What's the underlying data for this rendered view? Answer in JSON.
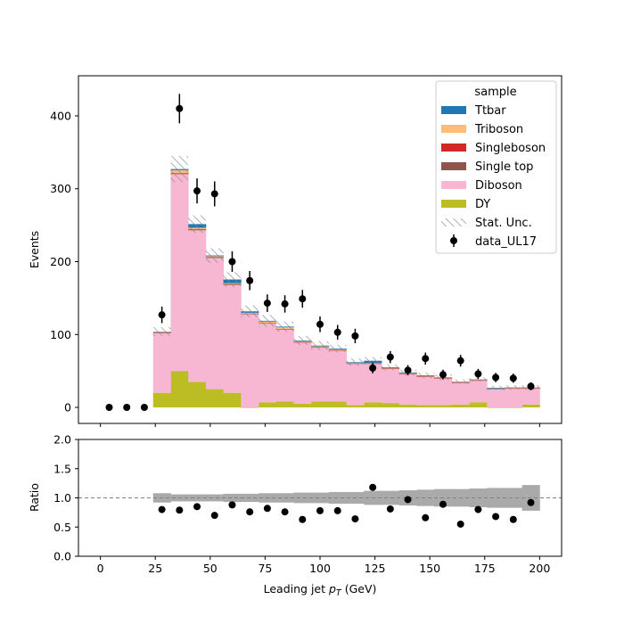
{
  "chart_data": [
    {
      "type": "bar",
      "stacked": true,
      "xlim": [
        -10,
        210
      ],
      "ylim": [
        -22,
        455
      ],
      "xticks": [
        0,
        25,
        50,
        75,
        100,
        125,
        150,
        175,
        200
      ],
      "yticks": [
        0,
        100,
        200,
        300,
        400
      ],
      "ylabel": "Events",
      "legend_title": "sample",
      "legend_position": "top-right",
      "bin_edges": [
        24,
        32,
        40,
        48,
        56,
        64,
        72,
        80,
        88,
        96,
        104,
        112,
        120,
        128,
        136,
        144,
        152,
        160,
        168,
        176,
        184,
        192,
        200
      ],
      "series": [
        {
          "name": "DY",
          "color": "#bcbd22",
          "values": [
            20,
            50,
            35,
            25,
            20,
            0,
            7,
            8,
            5,
            8,
            8,
            3,
            7,
            6,
            4,
            3,
            3,
            4,
            7,
            0,
            0,
            4
          ]
        },
        {
          "name": "Diboson",
          "color": "#f7b6d2",
          "values": [
            82,
            270,
            208,
            180,
            148,
            128,
            108,
            99,
            84,
            74,
            70,
            57,
            53,
            47,
            42,
            39,
            37,
            30,
            30,
            25,
            26,
            22
          ]
        },
        {
          "name": "Single top",
          "color": "#8c564b",
          "values": [
            0.3,
            1,
            1,
            1,
            1,
            0.5,
            0.5,
            0.5,
            0.5,
            0.5,
            0.5,
            0.3,
            0.3,
            0.3,
            0.3,
            0.2,
            0.2,
            0.2,
            0.2,
            0.2,
            0.2,
            0.2
          ]
        },
        {
          "name": "Singleboson",
          "color": "#d62728",
          "values": [
            0.2,
            0.5,
            0.5,
            0.5,
            0.5,
            0.3,
            0.3,
            0.3,
            0.3,
            0.3,
            0.3,
            0.2,
            0.2,
            0.2,
            0.2,
            0.1,
            0.1,
            0.1,
            0.1,
            0.1,
            0.1,
            0.1
          ]
        },
        {
          "name": "Triboson",
          "color": "#ffbb78",
          "values": [
            1,
            4,
            2,
            1,
            1,
            1,
            2,
            2,
            1,
            1,
            1,
            0.5,
            0.5,
            0.5,
            0.5,
            0.5,
            0.5,
            0.5,
            0.5,
            0.5,
            0.5,
            0.5
          ]
        },
        {
          "name": "Ttbar",
          "color": "#1f77b4",
          "values": [
            0.5,
            1.5,
            5,
            1,
            5,
            2,
            1,
            1,
            1,
            1,
            1,
            1,
            3,
            1,
            1,
            1,
            0.5,
            0.5,
            0.5,
            1,
            0.5,
            0.5
          ]
        }
      ],
      "stat_unc": {
        "name": "Stat. Unc.",
        "values": [
          6,
          18,
          12,
          10,
          10,
          8,
          8,
          7,
          6,
          6,
          5,
          5,
          5,
          4,
          4,
          4,
          4,
          3,
          3,
          3,
          3,
          3
        ]
      },
      "data": {
        "name": "data_UL17",
        "x": [
          4,
          12,
          20,
          28,
          36,
          44,
          52,
          60,
          68,
          76,
          84,
          92,
          100,
          108,
          116,
          124,
          132,
          140,
          148,
          156,
          164,
          172,
          180,
          188,
          196
        ],
        "y": [
          0,
          0,
          0,
          127,
          410,
          297,
          293,
          200,
          174,
          143,
          142,
          149,
          114,
          103,
          98,
          54,
          69,
          51,
          67,
          45,
          64,
          46,
          41,
          40,
          29
        ],
        "yerr": [
          0,
          0,
          0,
          11.3,
          20.2,
          17.2,
          17.1,
          14.1,
          13.2,
          12,
          11.9,
          12.2,
          10.7,
          10.1,
          9.9,
          7.3,
          8.3,
          7.1,
          8.2,
          6.7,
          8,
          6.8,
          6.4,
          6.3,
          5.4
        ]
      }
    },
    {
      "type": "scatter",
      "xlim": [
        -10,
        210
      ],
      "ylim": [
        0,
        2
      ],
      "xticks": [
        0,
        25,
        50,
        75,
        100,
        125,
        150,
        175,
        200
      ],
      "yticks": [
        0.0,
        0.5,
        1.0,
        1.5,
        2.0
      ],
      "ytick_labels": [
        "0.0",
        "0.5",
        "1.0",
        "1.5",
        "2.0"
      ],
      "xlabel": "Leading jet  p_T (GeV)",
      "ylabel": "Ratio",
      "reference_line": 1.0,
      "band_halfwidth": [
        0.08,
        0.06,
        0.06,
        0.06,
        0.07,
        0.07,
        0.08,
        0.08,
        0.09,
        0.09,
        0.1,
        0.1,
        0.12,
        0.12,
        0.13,
        0.14,
        0.15,
        0.15,
        0.16,
        0.17,
        0.17,
        0.22
      ],
      "x": [
        28,
        36,
        44,
        52,
        60,
        68,
        76,
        84,
        92,
        100,
        108,
        116,
        124,
        132,
        140,
        148,
        156,
        164,
        172,
        180,
        188,
        196
      ],
      "y": [
        0.8,
        0.79,
        0.85,
        0.7,
        0.88,
        0.76,
        0.82,
        0.76,
        0.63,
        0.78,
        0.78,
        0.64,
        1.18,
        0.81,
        0.97,
        0.66,
        0.89,
        0.55,
        0.8,
        0.68,
        0.63,
        0.92
      ]
    }
  ]
}
